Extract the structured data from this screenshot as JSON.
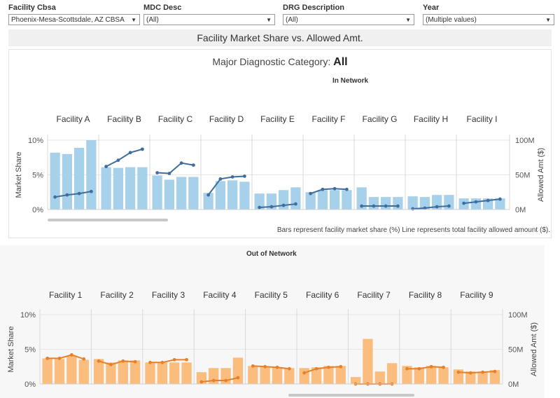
{
  "filters": [
    {
      "label": "Facility Cbsa",
      "value": "Phoenix-Mesa-Scottsdale, AZ CBSA"
    },
    {
      "label": "MDC Desc",
      "value": "(All)"
    },
    {
      "label": "DRG Description",
      "value": "(All)"
    },
    {
      "label": "Year",
      "value": "(Multiple values)"
    }
  ],
  "title": "Facility Market Share vs. Allowed Amt.",
  "mdc_label": "Major Diagnostic Category:",
  "mdc_value": "All",
  "footnote": "Bars represent facility market share (%) Line represents total facility allowed amount ($).",
  "colors": {
    "in_bar": "#a7d0ea",
    "in_line": "#3f6e9c",
    "out_bar": "#fbbd7d",
    "out_line": "#e8802a"
  },
  "chart_data": [
    {
      "type": "bar",
      "title": "In Network",
      "ylabel": "Market Share",
      "y2label": "Allowed Amt ($)",
      "ylim": [
        0,
        10
      ],
      "yticks": [
        "0%",
        "5%",
        "10%"
      ],
      "y2lim": [
        0,
        100
      ],
      "y2ticks": [
        "0M",
        "50M",
        "100M"
      ],
      "facilities": [
        {
          "name": "Facility A",
          "share": [
            8.2,
            8.0,
            8.9,
            10.0
          ],
          "allowed": [
            18,
            21,
            23,
            26
          ]
        },
        {
          "name": "Facility B",
          "share": [
            6.1,
            6.0,
            6.1,
            6.1
          ],
          "allowed": [
            62,
            71,
            82,
            87
          ]
        },
        {
          "name": "Facility C",
          "share": [
            4.9,
            4.3,
            4.7,
            4.7
          ],
          "allowed": [
            53,
            52,
            67,
            64
          ]
        },
        {
          "name": "Facility D",
          "share": [
            2.4,
            4.1,
            4.2,
            4.0
          ],
          "allowed": [
            21,
            44,
            47,
            48
          ]
        },
        {
          "name": "Facility E",
          "share": [
            2.3,
            2.3,
            2.8,
            3.2
          ],
          "allowed": [
            3,
            4,
            6,
            8
          ]
        },
        {
          "name": "Facility F",
          "share": [
            2.5,
            2.8,
            2.8,
            2.8
          ],
          "allowed": [
            23,
            29,
            30,
            29
          ]
        },
        {
          "name": "Facility G",
          "share": [
            3.2,
            1.8,
            1.8,
            1.8
          ],
          "allowed": [
            5,
            5,
            5,
            5
          ]
        },
        {
          "name": "Facility H",
          "share": [
            1.9,
            1.8,
            2.1,
            2.1
          ],
          "allowed": [
            1,
            2,
            4,
            5
          ]
        },
        {
          "name": "Facility I",
          "share": [
            1.6,
            1.6,
            1.6,
            1.6
          ],
          "allowed": [
            9,
            11,
            13,
            15
          ]
        }
      ]
    },
    {
      "type": "bar",
      "title": "Out of Network",
      "ylabel": "Market Share",
      "y2label": "Allowed Amt ($)",
      "ylim": [
        0,
        10
      ],
      "yticks": [
        "0%",
        "5%",
        "10%"
      ],
      "y2lim": [
        0,
        100
      ],
      "y2ticks": [
        "0M",
        "50M",
        "100M"
      ],
      "facilities": [
        {
          "name": "Facility 1",
          "share": [
            3.7,
            3.6,
            4.1,
            3.5
          ],
          "allowed": [
            37,
            37,
            42,
            36
          ]
        },
        {
          "name": "Facility 2",
          "share": [
            3.6,
            3.1,
            3.4,
            3.4
          ],
          "allowed": [
            33,
            28,
            33,
            32
          ]
        },
        {
          "name": "Facility 3",
          "share": [
            3.1,
            3.1,
            3.1,
            3.1
          ],
          "allowed": [
            31,
            31,
            35,
            35
          ]
        },
        {
          "name": "Facility 4",
          "share": [
            1.7,
            2.3,
            2.3,
            3.8
          ],
          "allowed": [
            3,
            5,
            5,
            9
          ]
        },
        {
          "name": "Facility 5",
          "share": [
            2.6,
            2.5,
            2.4,
            2.3
          ],
          "allowed": [
            26,
            25,
            24,
            22
          ]
        },
        {
          "name": "Facility 6",
          "share": [
            2.3,
            2.4,
            2.6,
            2.6
          ],
          "allowed": [
            16,
            22,
            24,
            25
          ]
        },
        {
          "name": "Facility 7",
          "share": [
            1.0,
            6.5,
            1.8,
            3.0
          ],
          "allowed": [
            0,
            0,
            0,
            0
          ]
        },
        {
          "name": "Facility 8",
          "share": [
            2.6,
            2.4,
            2.6,
            2.4
          ],
          "allowed": [
            22,
            22,
            25,
            24
          ]
        },
        {
          "name": "Facility 9",
          "share": [
            2.1,
            1.8,
            1.8,
            2.0
          ],
          "allowed": [
            17,
            16,
            17,
            18
          ]
        }
      ]
    }
  ]
}
